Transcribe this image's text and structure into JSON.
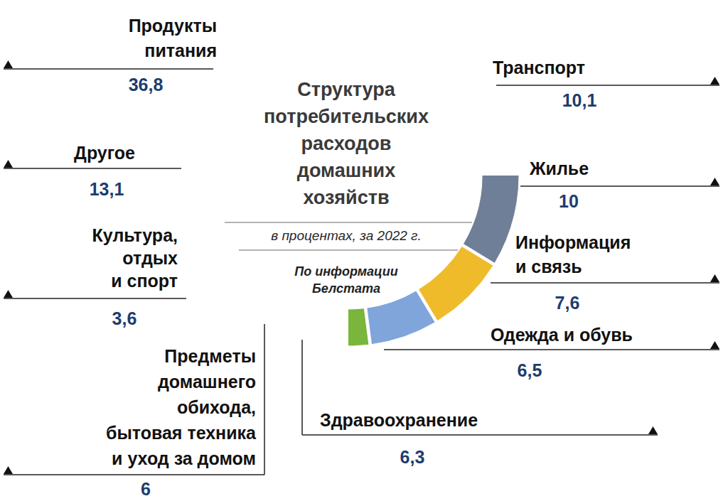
{
  "chart_data": {
    "type": "donut",
    "title": "Структура потребительских расходов домашних хозяйств",
    "subtitle": "в процентах, за 2022 г.",
    "source": "По информации Белстата",
    "categories": [
      "Продукты питания",
      "Транспорт",
      "Жилье",
      "Информация и связь",
      "Одежда и обувь",
      "Здравоохранение",
      "Предметы домашнего обихода, бытовая техника и уход за домом",
      "Культура, отдых и спорт",
      "Другое"
    ],
    "values": [
      36.8,
      10.1,
      10,
      7.6,
      6.5,
      6.3,
      6,
      3.6,
      13.1
    ],
    "value_labels": [
      "36,8",
      "10,1",
      "10",
      "7,6",
      "6,5",
      "6,3",
      "6",
      "3,6",
      "13,1"
    ],
    "colors": [
      "#5b7bc6",
      "#e07b2f",
      "#6f7f97",
      "#f0bb2b",
      "#7fa5db",
      "#7ab53c",
      "#2f4a85",
      "#9a4c16",
      "#c6d4e4"
    ],
    "data_labels": true
  }
}
